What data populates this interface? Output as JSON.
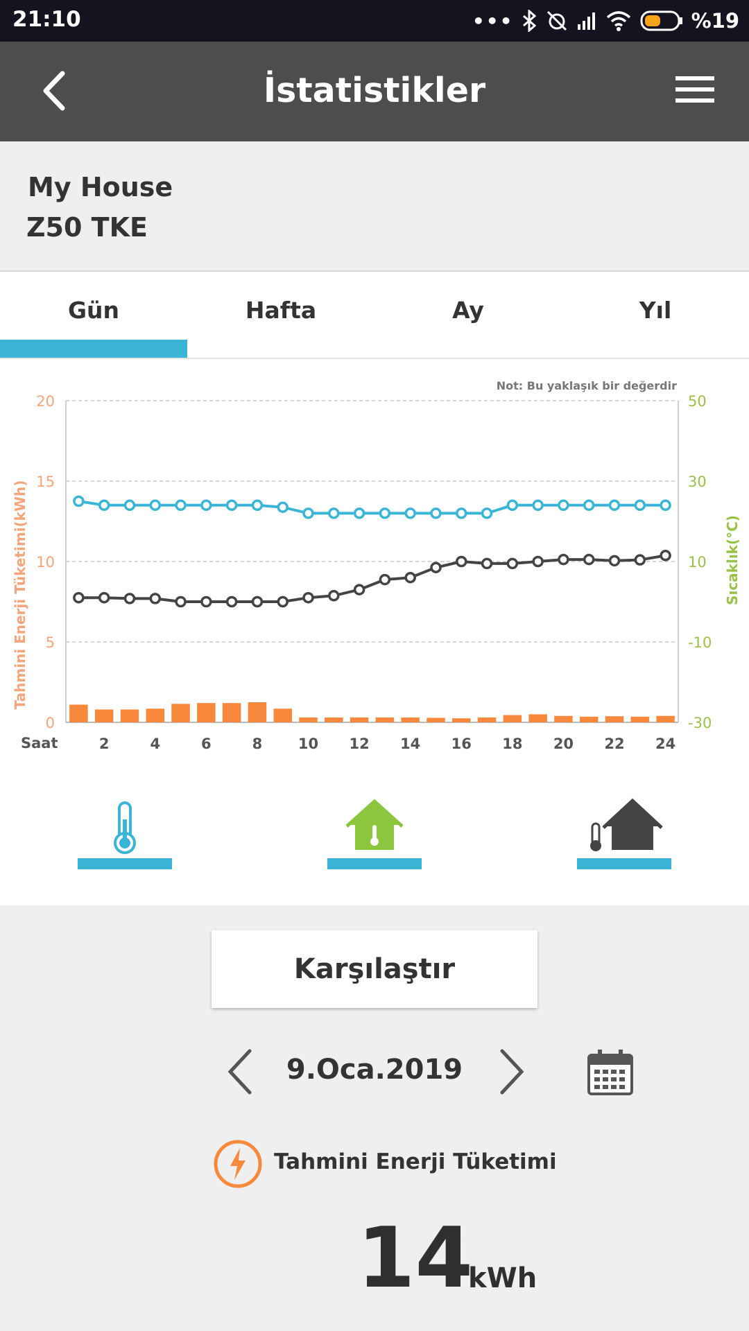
{
  "status_bar": {
    "time": "21:10",
    "battery": "%19"
  },
  "app_bar": {
    "title": "İstatistikler",
    "back_icon": "back-chevron-icon",
    "menu_icon": "hamburger-menu-icon"
  },
  "device": {
    "name": "My House",
    "model": "Z50 TKE"
  },
  "tabs": [
    {
      "label": "Gün",
      "selected": true
    },
    {
      "label": "Hafta",
      "selected": false
    },
    {
      "label": "Ay",
      "selected": false
    },
    {
      "label": "Yıl",
      "selected": false
    }
  ],
  "chart_note": "Not: Bu yaklaşık bir değerdir",
  "chart_data": {
    "type": "bar+line",
    "x_label": "Saat",
    "x_ticks": [
      2,
      4,
      6,
      8,
      10,
      12,
      14,
      16,
      18,
      20,
      22,
      24
    ],
    "hours": [
      1,
      2,
      3,
      4,
      5,
      6,
      7,
      8,
      9,
      10,
      11,
      12,
      13,
      14,
      15,
      16,
      17,
      18,
      19,
      20,
      21,
      22,
      23,
      24
    ],
    "left_axis": {
      "label": "Tahmini Enerji Tüketimi(kWh)",
      "ticks": [
        "20",
        "15",
        "10",
        "5",
        "0"
      ],
      "range": [
        0,
        20
      ],
      "color": "#f4a57c"
    },
    "right_axis": {
      "label": "Sıcaklık(°C)",
      "ticks": [
        "50",
        "30",
        "10",
        "-10",
        "-30"
      ],
      "range": [
        -30,
        50
      ],
      "color": "#9ac24a"
    },
    "energy_kwh": [
      1.1,
      0.8,
      0.8,
      0.85,
      1.15,
      1.2,
      1.2,
      1.25,
      0.85,
      0.3,
      0.3,
      0.3,
      0.3,
      0.3,
      0.28,
      0.25,
      0.3,
      0.45,
      0.5,
      0.4,
      0.35,
      0.38,
      0.35,
      0.4
    ],
    "temperature_series": {
      "color": "#3bb5d6",
      "values": [
        25,
        24,
        24,
        24,
        24,
        24,
        24,
        24,
        23.5,
        22,
        22,
        22,
        22,
        22,
        22,
        22,
        22,
        24,
        24,
        24,
        24,
        24,
        24,
        24
      ]
    },
    "outdoor_temp_series": {
      "color": "#444444",
      "values": [
        1,
        1,
        0.8,
        0.8,
        0,
        0,
        0,
        0,
        0,
        1,
        1.5,
        3,
        5.5,
        6,
        8.5,
        10,
        9.5,
        9.5,
        10,
        10.5,
        10.5,
        10.2,
        10.4,
        11.5
      ]
    },
    "bar_color": "#f7883c",
    "grid": "dashed"
  },
  "legend": {
    "items": [
      {
        "icon": "thermometer-icon",
        "color": "#3bb5d6"
      },
      {
        "icon": "house-thermometer-icon",
        "color": "#8cc63f"
      },
      {
        "icon": "outdoor-house-thermometer-icon",
        "color": "#444444"
      }
    ]
  },
  "compare_button": {
    "label": "Karşılaştır"
  },
  "date_nav": {
    "date": "9.Oca.2019"
  },
  "energy": {
    "label": "Tahmini Enerji Tüketimi",
    "value": "14",
    "unit": "kWh"
  }
}
